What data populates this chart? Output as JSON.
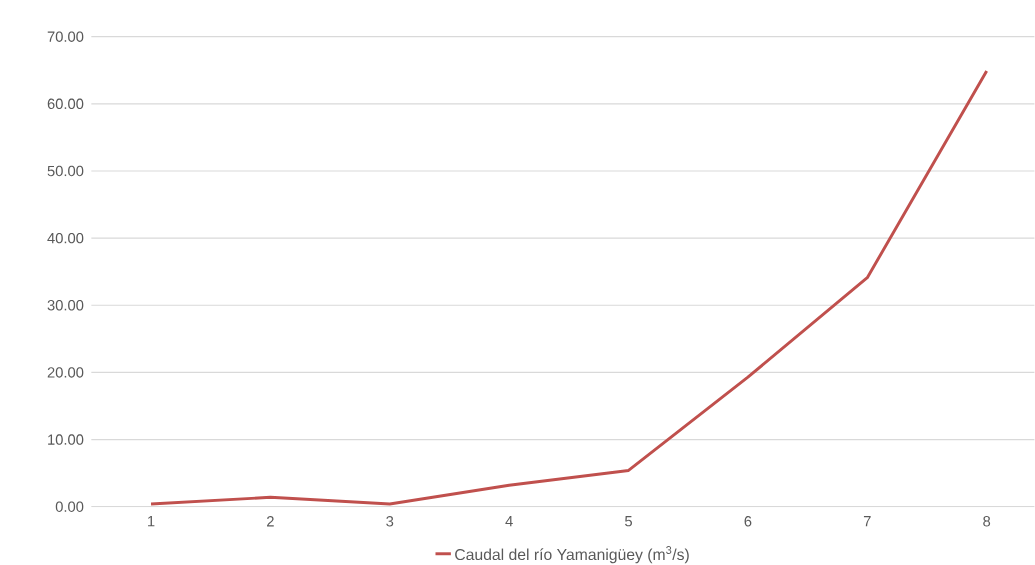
{
  "chart_data": {
    "type": "line",
    "categories": [
      "1",
      "2",
      "3",
      "4",
      "5",
      "6",
      "7",
      "8"
    ],
    "series": [
      {
        "name": "Caudal del río Yamanigüey (m$^{3}$/s)",
        "color": "#c0504d",
        "values": [
          0.4,
          1.4,
          0.4,
          3.2,
          5.4,
          19.3,
          34.1,
          64.9
        ]
      }
    ],
    "ylim": [
      0,
      70
    ],
    "yticks": [
      {
        "value": 0,
        "label": "0.00"
      },
      {
        "value": 10,
        "label": "10.00"
      },
      {
        "value": 20,
        "label": "20.00"
      },
      {
        "value": 30,
        "label": "30.00"
      },
      {
        "value": 40,
        "label": "40.00"
      },
      {
        "value": 50,
        "label": "50.00"
      },
      {
        "value": 60,
        "label": "60.00"
      },
      {
        "value": 70,
        "label": "70.00"
      }
    ],
    "grid": "y",
    "legend": "bottom",
    "marker": "none",
    "line_style": "solid"
  }
}
